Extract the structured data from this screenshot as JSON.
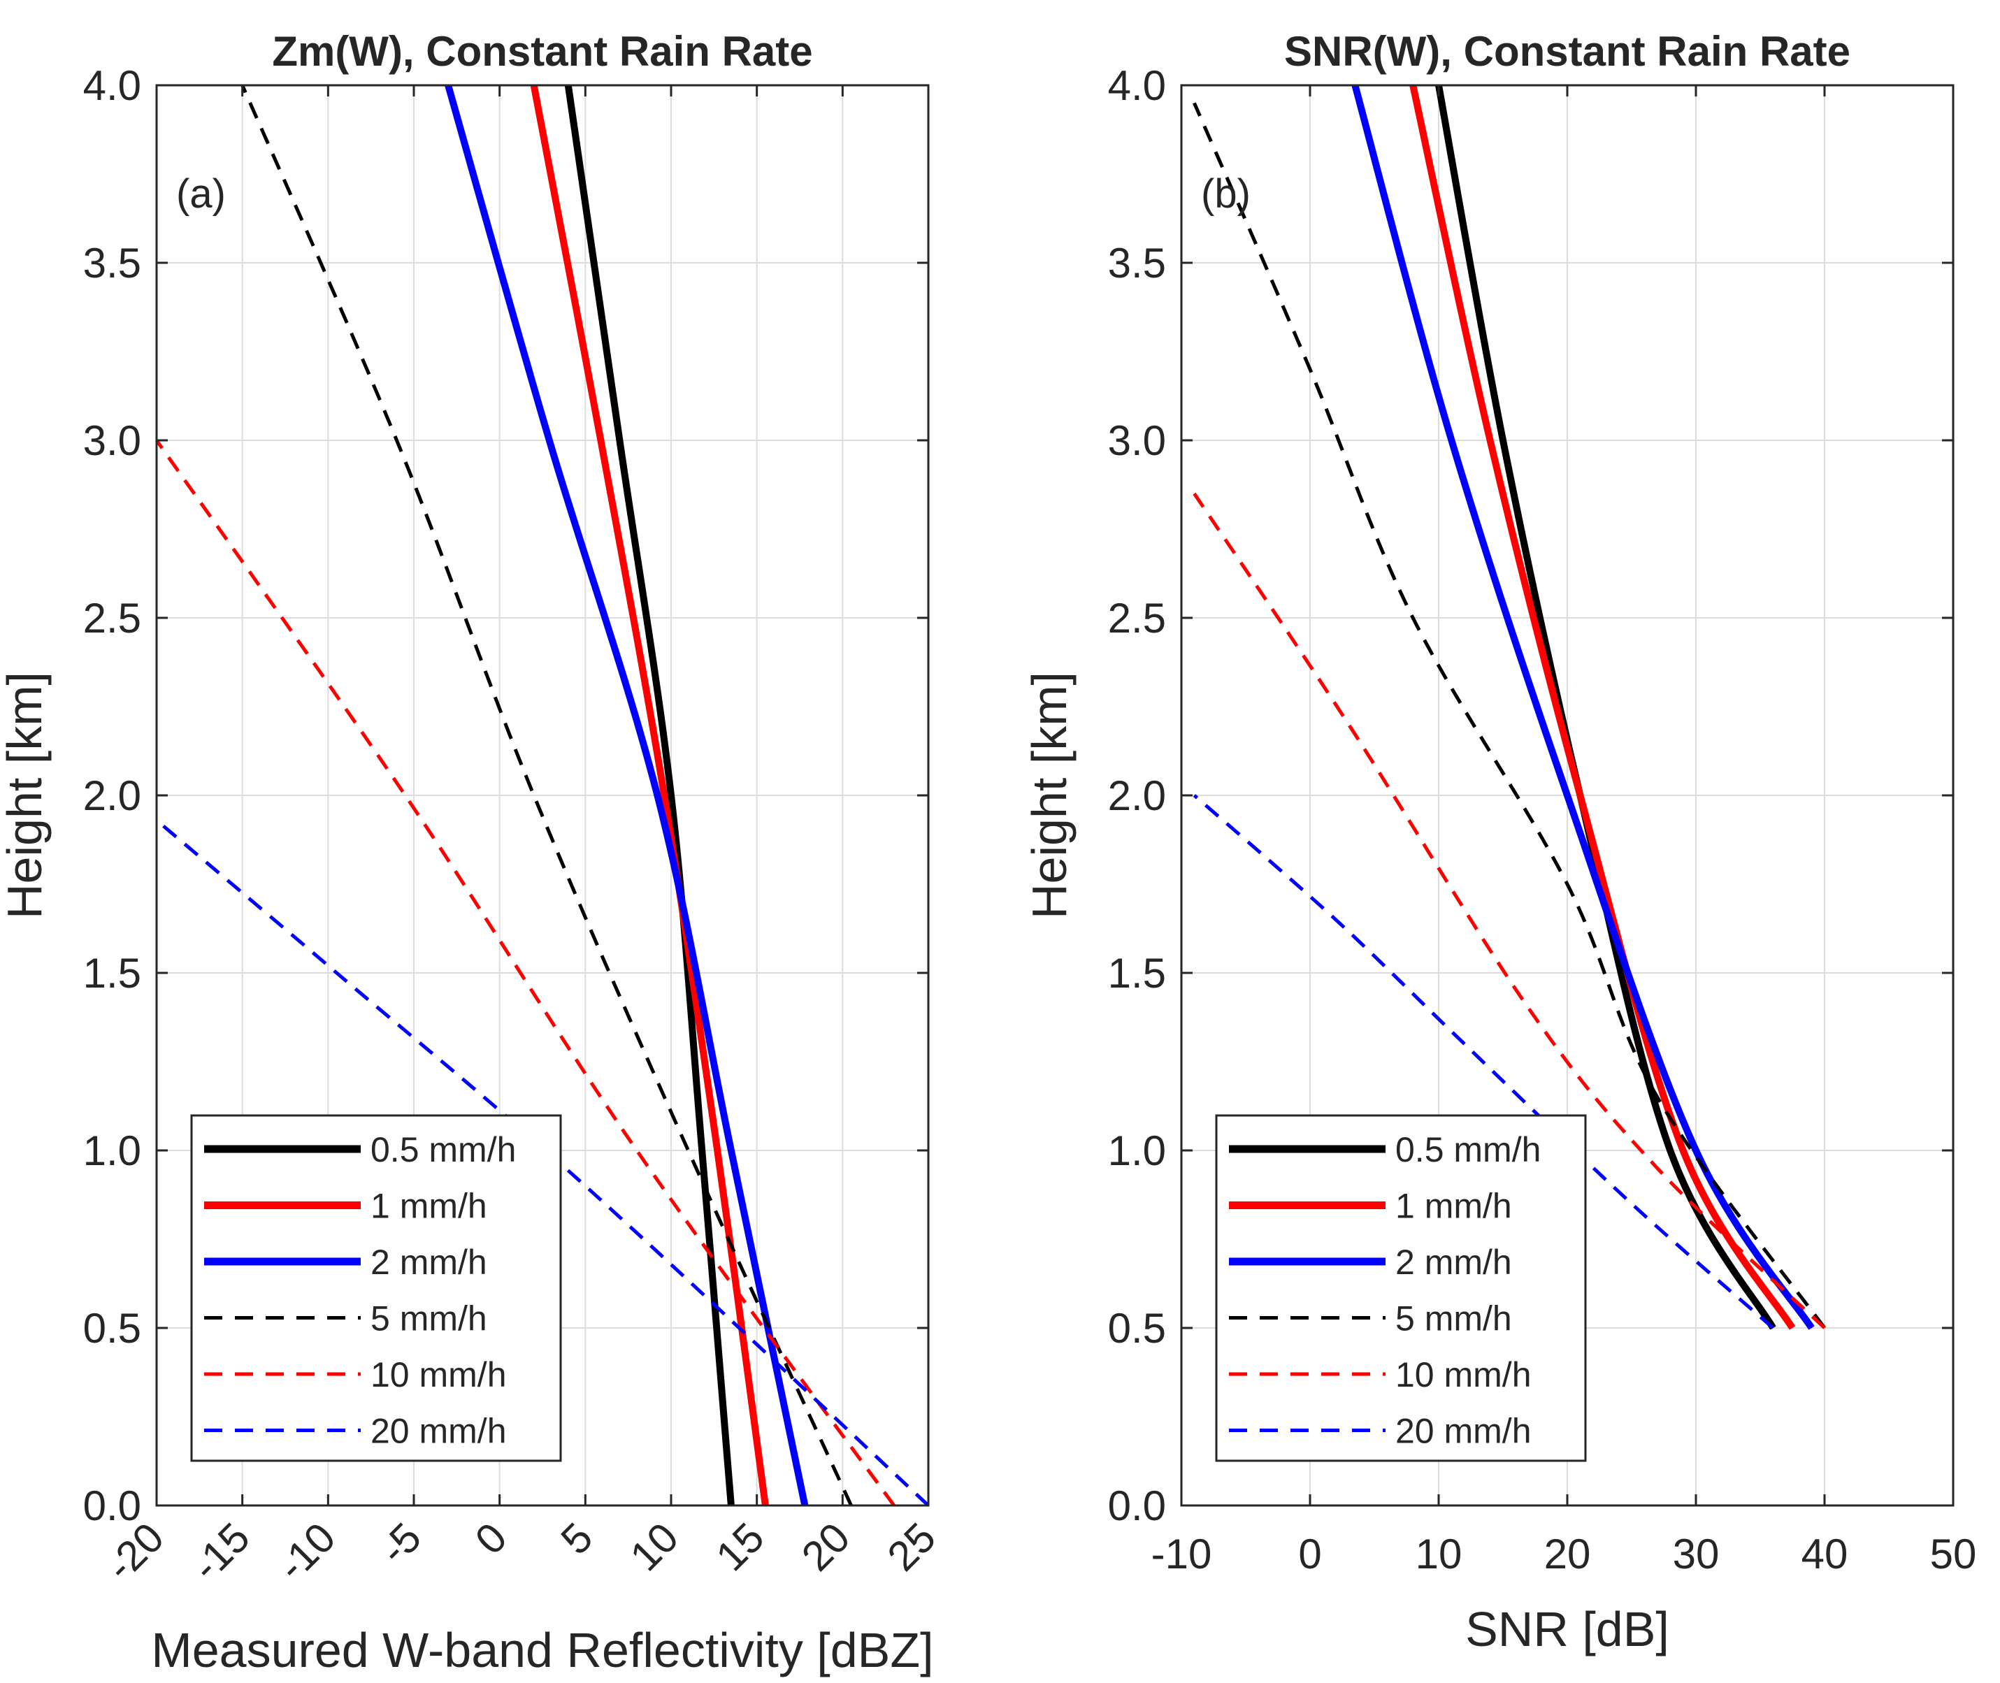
{
  "chart_data": [
    {
      "type": "line",
      "title": "Zm(W), Constant Rain Rate",
      "panel_label": "(a)",
      "xlabel": "Measured W-band Reflectivity [dBZ]",
      "ylabel": "Height [km]",
      "xlim": [
        -20,
        25
      ],
      "ylim": [
        0,
        4
      ],
      "x_ticks": [
        -20,
        -15,
        -10,
        -5,
        0,
        5,
        10,
        15,
        20,
        25
      ],
      "x_tick_labels": [
        "-20",
        "-15",
        "-10",
        "-5",
        "0",
        "5",
        "10",
        "15",
        "20",
        "25"
      ],
      "y_ticks": [
        0,
        0.5,
        1,
        1.5,
        2,
        2.5,
        3,
        3.5,
        4
      ],
      "y_tick_labels": [
        "0.0",
        "0.5",
        "1.0",
        "1.5",
        "2.0",
        "2.5",
        "3.0",
        "3.5",
        "4.0"
      ],
      "x_tick_rotation": 45,
      "grid": true,
      "legend_position": "bottom-left",
      "series": [
        {
          "name": "0.5 mm/h",
          "color": "#000000",
          "style": "solid",
          "points": [
            [
              13.5,
              0
            ],
            [
              11.8,
              1.0
            ],
            [
              10.0,
              2.0
            ],
            [
              7.0,
              3.0
            ],
            [
              4.0,
              4.0
            ]
          ]
        },
        {
          "name": "1 mm/h",
          "color": "#ff0000",
          "style": "solid",
          "points": [
            [
              15.5,
              0
            ],
            [
              12.7,
              1.0
            ],
            [
              9.6,
              2.0
            ],
            [
              5.9,
              3.0
            ],
            [
              2.0,
              4.0
            ]
          ]
        },
        {
          "name": "2 mm/h",
          "color": "#0000ff",
          "style": "solid",
          "points": [
            [
              17.8,
              0
            ],
            [
              13.5,
              1.0
            ],
            [
              9.2,
              2.0
            ],
            [
              2.9,
              3.0
            ],
            [
              -3.0,
              4.0
            ]
          ]
        },
        {
          "name": "5 mm/h",
          "color": "#000000",
          "style": "dashed",
          "points": [
            [
              20.5,
              0
            ],
            [
              11.0,
              1.0
            ],
            [
              2.0,
              2.0
            ],
            [
              -6.0,
              3.0
            ],
            [
              -15.0,
              4.0
            ]
          ]
        },
        {
          "name": "10 mm/h",
          "color": "#ff0000",
          "style": "dashed",
          "points": [
            [
              23.0,
              0
            ],
            [
              8.0,
              1.0
            ],
            [
              -5.5,
              2.0
            ],
            [
              -20.0,
              3.0
            ]
          ]
        },
        {
          "name": "20 mm/h",
          "color": "#0000ff",
          "style": "dashed",
          "points": [
            [
              25.0,
              0
            ],
            [
              5.0,
              0.9
            ],
            [
              -9.5,
              1.5
            ],
            [
              -20.0,
              1.93
            ]
          ]
        }
      ]
    },
    {
      "type": "line",
      "title": "SNR(W), Constant Rain Rate",
      "panel_label": "(b)",
      "xlabel": "SNR [dB]",
      "ylabel": "Height [km]",
      "xlim": [
        -10,
        50
      ],
      "ylim": [
        0,
        4
      ],
      "x_ticks": [
        -10,
        0,
        10,
        20,
        30,
        40,
        50
      ],
      "x_tick_labels": [
        "-10",
        "0",
        "10",
        "20",
        "30",
        "40",
        "50"
      ],
      "y_ticks": [
        0,
        0.5,
        1,
        1.5,
        2,
        2.5,
        3,
        3.5,
        4
      ],
      "y_tick_labels": [
        "0.0",
        "0.5",
        "1.0",
        "1.5",
        "2.0",
        "2.5",
        "3.0",
        "3.5",
        "4.0"
      ],
      "x_tick_rotation": 0,
      "grid": true,
      "legend_position": "bottom-left",
      "series": [
        {
          "name": "0.5 mm/h",
          "color": "#000000",
          "style": "solid",
          "points": [
            [
              36.0,
              0.5
            ],
            [
              28.0,
              1.0
            ],
            [
              21.0,
              2.0
            ],
            [
              15.0,
              3.0
            ],
            [
              10.0,
              4.0
            ]
          ]
        },
        {
          "name": "1 mm/h",
          "color": "#ff0000",
          "style": "solid",
          "points": [
            [
              37.5,
              0.5
            ],
            [
              29.0,
              1.0
            ],
            [
              21.0,
              2.0
            ],
            [
              14.0,
              3.0
            ],
            [
              8.0,
              4.0
            ]
          ]
        },
        {
          "name": "2 mm/h",
          "color": "#0000ff",
          "style": "solid",
          "points": [
            [
              39.0,
              0.5
            ],
            [
              30.0,
              1.0
            ],
            [
              20.0,
              2.0
            ],
            [
              11.0,
              3.0
            ],
            [
              3.5,
              4.0
            ]
          ]
        },
        {
          "name": "5 mm/h",
          "color": "#000000",
          "style": "dashed",
          "points": [
            [
              40.0,
              0.5
            ],
            [
              27.0,
              1.15
            ],
            [
              20.0,
              1.75
            ],
            [
              8.0,
              2.5
            ],
            [
              0.0,
              3.2
            ],
            [
              -9.0,
              3.95
            ]
          ]
        },
        {
          "name": "10 mm/h",
          "color": "#ff0000",
          "style": "dashed",
          "points": [
            [
              40.0,
              0.5
            ],
            [
              27.0,
              0.95
            ],
            [
              17.0,
              1.4
            ],
            [
              3.0,
              2.2
            ],
            [
              -9.0,
              2.85
            ]
          ]
        },
        {
          "name": "20 mm/h",
          "color": "#0000ff",
          "style": "dashed",
          "points": [
            [
              36.0,
              0.5
            ],
            [
              25.0,
              0.85
            ],
            [
              12.0,
              1.3
            ],
            [
              2.0,
              1.65
            ],
            [
              -9.0,
              2.0
            ]
          ]
        }
      ]
    }
  ]
}
